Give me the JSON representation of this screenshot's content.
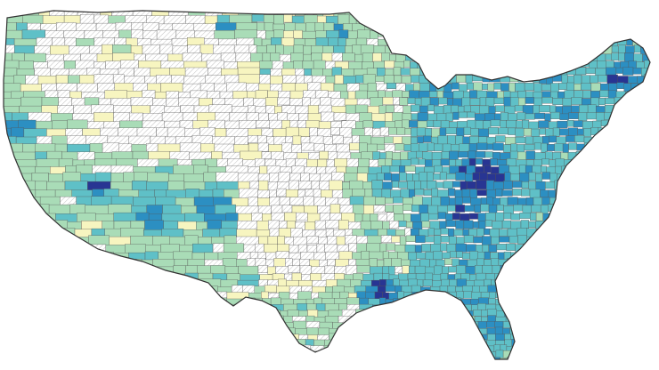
{
  "map": {
    "kind": "choropleth",
    "region": "contiguous-united-states",
    "unit": "county",
    "legend": "none",
    "colors": {
      "no_data_hatch": "#ffffff",
      "level_1": "#f7f5c0",
      "level_2": "#a9dcb7",
      "level_3": "#5fc0c7",
      "level_4": "#2c8fc2",
      "level_5": "#283593",
      "border": "#555555",
      "background": "#ffffff"
    },
    "notable_high_value_areas": [
      "appalachia-kentucky-west-virginia",
      "northern-maine",
      "gulf-coast-louisiana",
      "northern-california-coast",
      "nevada-arizona-pockets"
    ]
  }
}
